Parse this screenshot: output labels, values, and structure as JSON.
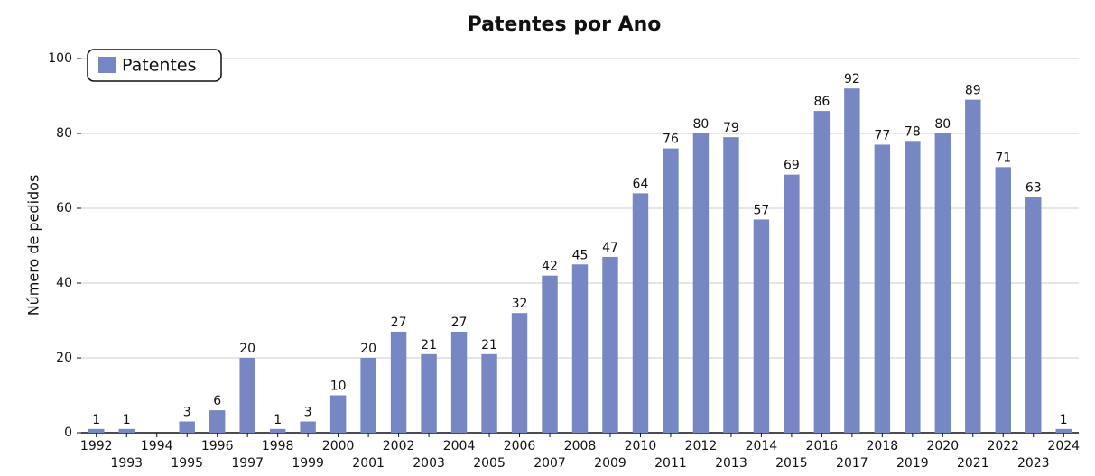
{
  "chart_data": {
    "type": "bar",
    "title": "Patentes por Ano",
    "y_label": "Número de pedidos",
    "categories": [
      "1992",
      "1993",
      "1994",
      "1995",
      "1996",
      "1997",
      "1998",
      "1999",
      "2000",
      "2001",
      "2002",
      "2003",
      "2004",
      "2005",
      "2006",
      "2007",
      "2008",
      "2009",
      "2010",
      "2011",
      "2012",
      "2013",
      "2014",
      "2015",
      "2016",
      "2017",
      "2018",
      "2019",
      "2020",
      "2021",
      "2022",
      "2023",
      "2024"
    ],
    "series": [
      {
        "name": "Patentes",
        "color": "#7787c4",
        "values": [
          1,
          1,
          0,
          3,
          6,
          20,
          1,
          3,
          10,
          20,
          27,
          21,
          27,
          21,
          32,
          42,
          45,
          47,
          64,
          76,
          80,
          79,
          57,
          69,
          86,
          92,
          77,
          78,
          80,
          89,
          71,
          63,
          1
        ]
      }
    ],
    "ylim": [
      0,
      100
    ],
    "yticks": [
      0,
      20,
      40,
      60,
      80,
      100
    ],
    "grid": true,
    "legend": "upper left"
  }
}
